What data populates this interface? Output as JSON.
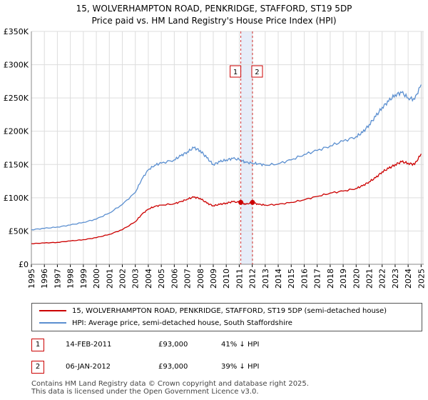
{
  "header": {
    "title_line1": "15, WOLVERHAMPTON ROAD, PENKRIDGE, STAFFORD, ST19 5DP",
    "title_line2": "Price paid vs. HM Land Registry's House Price Index (HPI)"
  },
  "colors": {
    "price_line": "#cc0000",
    "hpi_line": "#5b8fd0",
    "grid": "#dddddd",
    "sale_band": "#dde6f5",
    "sale_marker_line": "#cc0000"
  },
  "chart_data": {
    "type": "line",
    "title": "15, WOLVERHAMPTON ROAD, PENKRIDGE, STAFFORD, ST19 5DP — Price paid vs. HM Land Registry's House Price Index (HPI)",
    "xlabel": "",
    "ylabel": "",
    "xlim": [
      1995,
      2025.2
    ],
    "ylim": [
      0,
      350000
    ],
    "grid": true,
    "y_ticks": [
      {
        "value": 0,
        "label": "£0"
      },
      {
        "value": 50000,
        "label": "£50K"
      },
      {
        "value": 100000,
        "label": "£100K"
      },
      {
        "value": 150000,
        "label": "£150K"
      },
      {
        "value": 200000,
        "label": "£200K"
      },
      {
        "value": 250000,
        "label": "£250K"
      },
      {
        "value": 300000,
        "label": "£300K"
      },
      {
        "value": 350000,
        "label": "£350K"
      }
    ],
    "x_ticks": [
      "1995",
      "1996",
      "1997",
      "1998",
      "1999",
      "2000",
      "2001",
      "2002",
      "2003",
      "2004",
      "2005",
      "2006",
      "2007",
      "2008",
      "2009",
      "2010",
      "2011",
      "2012",
      "2013",
      "2014",
      "2015",
      "2016",
      "2017",
      "2018",
      "2019",
      "2020",
      "2021",
      "2022",
      "2023",
      "2024",
      "2025"
    ],
    "series": [
      {
        "name": "15, WOLVERHAMPTON ROAD, PENKRIDGE, STAFFORD, ST19 5DP (semi-detached house)",
        "color": "#cc0000",
        "x": [
          1995,
          1996,
          1997,
          1998,
          1999,
          2000,
          2001,
          2002,
          2003,
          2003.5,
          2004,
          2004.5,
          2005,
          2006,
          2006.5,
          2007,
          2007.5,
          2008,
          2008.5,
          2009,
          2009.5,
          2010,
          2010.5,
          2011.12,
          2011.5,
          2012.02,
          2012.5,
          2013,
          2014,
          2015,
          2016,
          2017,
          2018,
          2019,
          2020,
          2020.5,
          2021,
          2021.5,
          2022,
          2022.5,
          2023,
          2023.5,
          2024,
          2024.5,
          2025
        ],
        "y": [
          31000,
          32000,
          33000,
          35000,
          37000,
          40000,
          45000,
          52000,
          64000,
          75000,
          83000,
          87000,
          89000,
          91000,
          94000,
          98000,
          101000,
          99000,
          92000,
          88000,
          90000,
          92000,
          94000,
          93000,
          90000,
          93000,
          90000,
          89000,
          90000,
          93000,
          97000,
          102000,
          107000,
          110000,
          114000,
          118000,
          124000,
          130000,
          139000,
          144000,
          150000,
          154000,
          152000,
          150000,
          166000
        ]
      },
      {
        "name": "HPI: Average price, semi-detached house, South Staffordshire",
        "color": "#5b8fd0",
        "x": [
          1995,
          1996,
          1997,
          1998,
          1999,
          2000,
          2001,
          2002,
          2003,
          2003.5,
          2004,
          2004.5,
          2005,
          2006,
          2006.5,
          2007,
          2007.5,
          2008,
          2008.5,
          2009,
          2009.5,
          2010,
          2010.5,
          2011.12,
          2011.5,
          2012.02,
          2012.5,
          2013,
          2014,
          2015,
          2016,
          2017,
          2018,
          2019,
          2020,
          2020.5,
          2021,
          2021.5,
          2022,
          2022.5,
          2023,
          2023.5,
          2024,
          2024.5,
          2025
        ],
        "y": [
          52000,
          54000,
          56000,
          59000,
          63000,
          68000,
          77000,
          90000,
          108000,
          128000,
          142000,
          149000,
          152000,
          157000,
          163000,
          169000,
          175000,
          171000,
          160000,
          150000,
          154000,
          157000,
          159000,
          157000,
          153000,
          152000,
          151000,
          149000,
          151000,
          157000,
          165000,
          171000,
          178000,
          185000,
          192000,
          198000,
          210000,
          222000,
          236000,
          245000,
          255000,
          258000,
          250000,
          248000,
          270000
        ]
      }
    ],
    "annotations": [
      {
        "label": "1",
        "x": 2011.12,
        "y": 93000
      },
      {
        "label": "2",
        "x": 2012.02,
        "y": 93000
      }
    ]
  },
  "legend": {
    "items": [
      {
        "label": "15, WOLVERHAMPTON ROAD, PENKRIDGE, STAFFORD, ST19 5DP (semi-detached house)"
      },
      {
        "label": "HPI: Average price, semi-detached house, South Staffordshire"
      }
    ]
  },
  "sales": [
    {
      "num": "1",
      "date": "14-FEB-2011",
      "price": "£93,000",
      "hpi": "41% ↓ HPI"
    },
    {
      "num": "2",
      "date": "06-JAN-2012",
      "price": "£93,000",
      "hpi": "39% ↓ HPI"
    }
  ],
  "footer": {
    "line1": "Contains HM Land Registry data © Crown copyright and database right 2025.",
    "line2": "This data is licensed under the Open Government Licence v3.0."
  }
}
